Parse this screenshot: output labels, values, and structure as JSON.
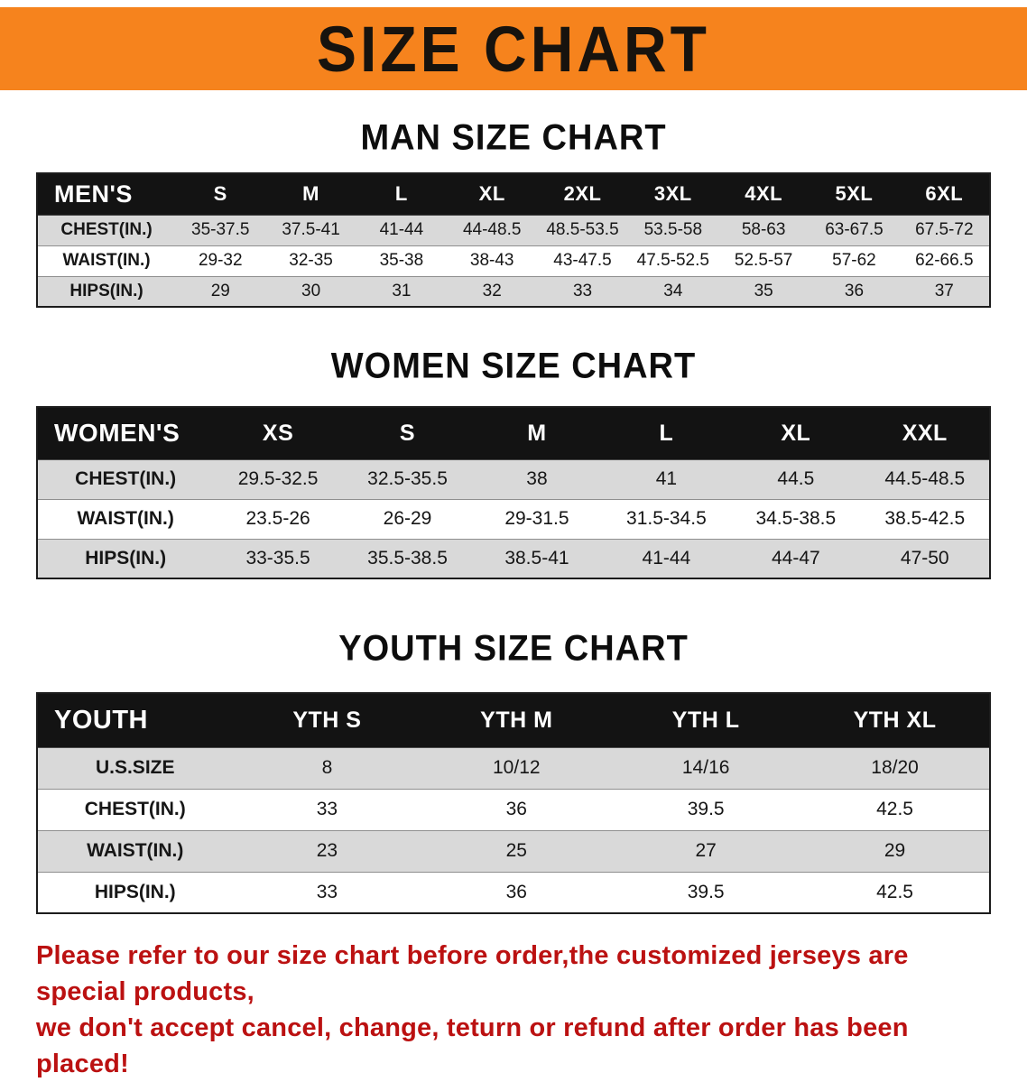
{
  "banner": {
    "title": "SIZE CHART",
    "bg_color": "#F6831D"
  },
  "sections": [
    {
      "id": "men",
      "heading": "MAN SIZE CHART",
      "table": {
        "header": [
          "MEN'S",
          "S",
          "M",
          "L",
          "XL",
          "2XL",
          "3XL",
          "4XL",
          "5XL",
          "6XL"
        ],
        "rows": [
          [
            "CHEST(IN.)",
            "35-37.5",
            "37.5-41",
            "41-44",
            "44-48.5",
            "48.5-53.5",
            "53.5-58",
            "58-63",
            "63-67.5",
            "67.5-72"
          ],
          [
            "WAIST(IN.)",
            "29-32",
            "32-35",
            "35-38",
            "38-43",
            "43-47.5",
            "47.5-52.5",
            "52.5-57",
            "57-62",
            "62-66.5"
          ],
          [
            "HIPS(IN.)",
            "29",
            "30",
            "31",
            "32",
            "33",
            "34",
            "35",
            "36",
            "37"
          ]
        ]
      }
    },
    {
      "id": "women",
      "heading": "WOMEN SIZE CHART",
      "table": {
        "header": [
          "WOMEN'S",
          "XS",
          "S",
          "M",
          "L",
          "XL",
          "XXL"
        ],
        "rows": [
          [
            "CHEST(IN.)",
            "29.5-32.5",
            "32.5-35.5",
            "38",
            "41",
            "44.5",
            "44.5-48.5"
          ],
          [
            "WAIST(IN.)",
            "23.5-26",
            "26-29",
            "29-31.5",
            "31.5-34.5",
            "34.5-38.5",
            "38.5-42.5"
          ],
          [
            "HIPS(IN.)",
            "33-35.5",
            "35.5-38.5",
            "38.5-41",
            "41-44",
            "44-47",
            "47-50"
          ]
        ]
      }
    },
    {
      "id": "youth",
      "heading": "YOUTH SIZE CHART",
      "table": {
        "header": [
          "YOUTH",
          "YTH S",
          "YTH M",
          "YTH L",
          "YTH XL"
        ],
        "rows": [
          [
            "U.S.SIZE",
            "8",
            "10/12",
            "14/16",
            "18/20"
          ],
          [
            "CHEST(IN.)",
            "33",
            "36",
            "39.5",
            "42.5"
          ],
          [
            "WAIST(IN.)",
            "23",
            "25",
            "27",
            "29"
          ],
          [
            "HIPS(IN.)",
            "33",
            "36",
            "39.5",
            "42.5"
          ]
        ]
      }
    }
  ],
  "footer": {
    "line1": "Please refer to our size chart before order,the customized jerseys are special products,",
    "line2": "we don't accept cancel, change, teturn or refund after order has been placed!",
    "text_color": "#BB1111"
  },
  "colors": {
    "table_header_bg": "#131313",
    "row_alt_bg": "#D9D9D9"
  }
}
